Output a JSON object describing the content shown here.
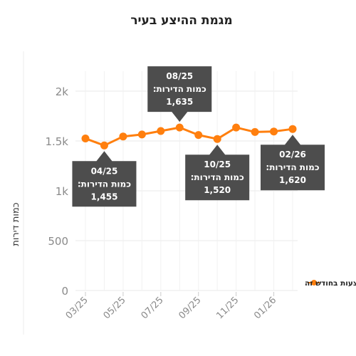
{
  "chart_data": {
    "type": "line",
    "title": "מגמת ההיצע בעיר",
    "ylabel": "כמות דירות",
    "xlabel": "",
    "ylim": [
      0,
      2200
    ],
    "grid": true,
    "y_ticks": [
      0,
      500,
      1000,
      1500,
      2000
    ],
    "y_tick_labels": [
      "0",
      "500",
      "1k",
      "1.5k",
      "2k"
    ],
    "x": [
      "03/25",
      "04/25",
      "05/25",
      "06/25",
      "07/25",
      "08/25",
      "09/25",
      "10/25",
      "11/25",
      "12/25",
      "01/26",
      "02/26"
    ],
    "x_tick_labels": [
      "03/25",
      "05/25",
      "07/25",
      "09/25",
      "11/25",
      "01/26"
    ],
    "series": [
      {
        "name": "כמות הדירות המוצעות בחודש זה",
        "color": "#ff7f0e",
        "values": [
          1525,
          1455,
          1545,
          1565,
          1600,
          1635,
          1560,
          1520,
          1635,
          1590,
          1595,
          1620
        ]
      }
    ],
    "legend_position": "right",
    "annotations": [
      {
        "x": "04/25",
        "date": "04/25",
        "label": "כמות הדירות:",
        "value": "1,455"
      },
      {
        "x": "08/25",
        "date": "08/25",
        "label": "כמות הדירות:",
        "value": "1,635"
      },
      {
        "x": "10/25",
        "date": "10/25",
        "label": "כמות הדירות:",
        "value": "1,520"
      },
      {
        "x": "02/26",
        "date": "02/26",
        "label": "כמות הדירות:",
        "value": "1,620"
      }
    ]
  }
}
